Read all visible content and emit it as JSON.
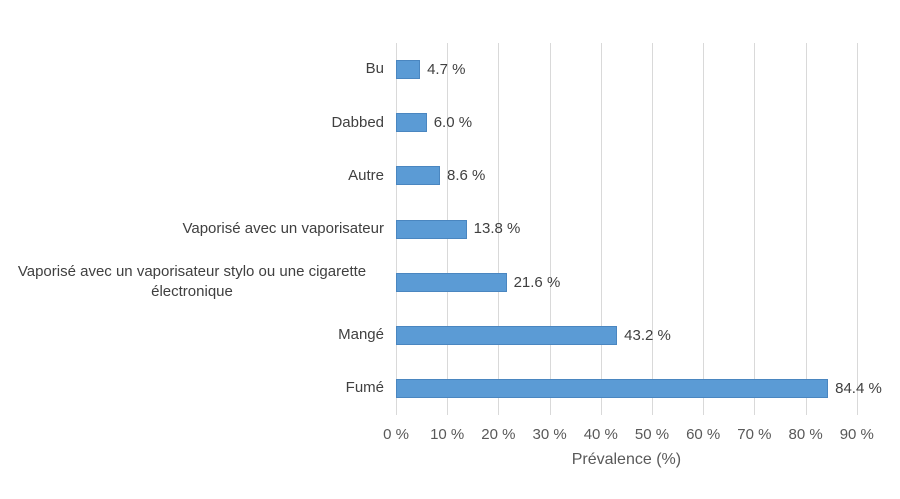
{
  "chart_data": {
    "type": "bar",
    "orientation": "horizontal",
    "title": "",
    "xlabel": "Prévalence (%)",
    "ylabel": "",
    "xlim": [
      0,
      90
    ],
    "x_tick_step": 10,
    "x_tick_labels": [
      "0 %",
      "10 %",
      "20 %",
      "30 %",
      "40 %",
      "50 %",
      "60 %",
      "70 %",
      "80 %",
      "90 %"
    ],
    "grid": "vertical",
    "legend": "none",
    "categories": [
      "Bu",
      "Dabbed",
      "Autre",
      "Vaporisé avec un vaporisateur",
      "Vaporisé avec un vaporisateur stylo ou une cigarette électronique",
      "Mangé",
      "Fumé"
    ],
    "values": [
      4.7,
      6.0,
      8.6,
      13.8,
      21.6,
      43.2,
      84.4
    ],
    "value_labels": [
      "4.7 %",
      "6.0 %",
      "8.6 %",
      "13.8 %",
      "21.6 %",
      "43.2 %",
      "84.4 %"
    ],
    "colors": {
      "bar_fill": "#5B9BD5",
      "bar_border": "#4A86C0",
      "gridline": "#D9D9D9",
      "category_text": "#404040",
      "value_text": "#404040",
      "tick_text": "#595959",
      "background": "#FFFFFF"
    }
  }
}
